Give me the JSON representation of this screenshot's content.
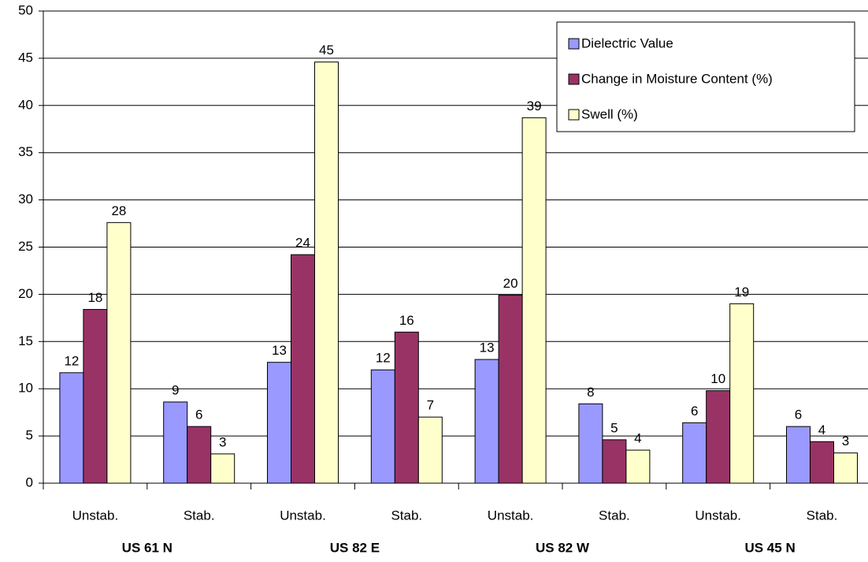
{
  "chart_data": {
    "type": "bar",
    "categories": [
      "Unstab.",
      "Stab.",
      "Unstab.",
      "Stab.",
      "Unstab.",
      "Stab.",
      "Unstab.",
      "Stab."
    ],
    "groups": [
      "US 61 N",
      "US 82 E",
      "US 82 W",
      "US 45 N"
    ],
    "series": [
      {
        "name": "Dielectric Value",
        "color": "#9999ff",
        "values": [
          11.7,
          8.6,
          12.8,
          12.0,
          13.1,
          8.4,
          6.4,
          6.0
        ],
        "value_labels": [
          "12",
          "9",
          "13",
          "12",
          "13",
          "8",
          "6",
          "6"
        ]
      },
      {
        "name": "Change in Moisture Content (%)",
        "color": "#993366",
        "values": [
          18.4,
          6.0,
          24.2,
          16.0,
          19.9,
          4.6,
          9.8,
          4.4
        ],
        "value_labels": [
          "18",
          "6",
          "24",
          "16",
          "20",
          "5",
          "10",
          "4"
        ]
      },
      {
        "name": "Swell (%)",
        "color": "#ffffcc",
        "values": [
          27.6,
          3.1,
          44.6,
          7.0,
          38.7,
          3.5,
          19.0,
          3.2
        ],
        "value_labels": [
          "28",
          "3",
          "45",
          "7",
          "39",
          "4",
          "19",
          "3"
        ]
      }
    ],
    "ylim": [
      0,
      50
    ],
    "yticks": [
      0,
      5,
      10,
      15,
      20,
      25,
      30,
      35,
      40,
      45,
      50
    ],
    "grid": true,
    "legend": "upper right"
  }
}
